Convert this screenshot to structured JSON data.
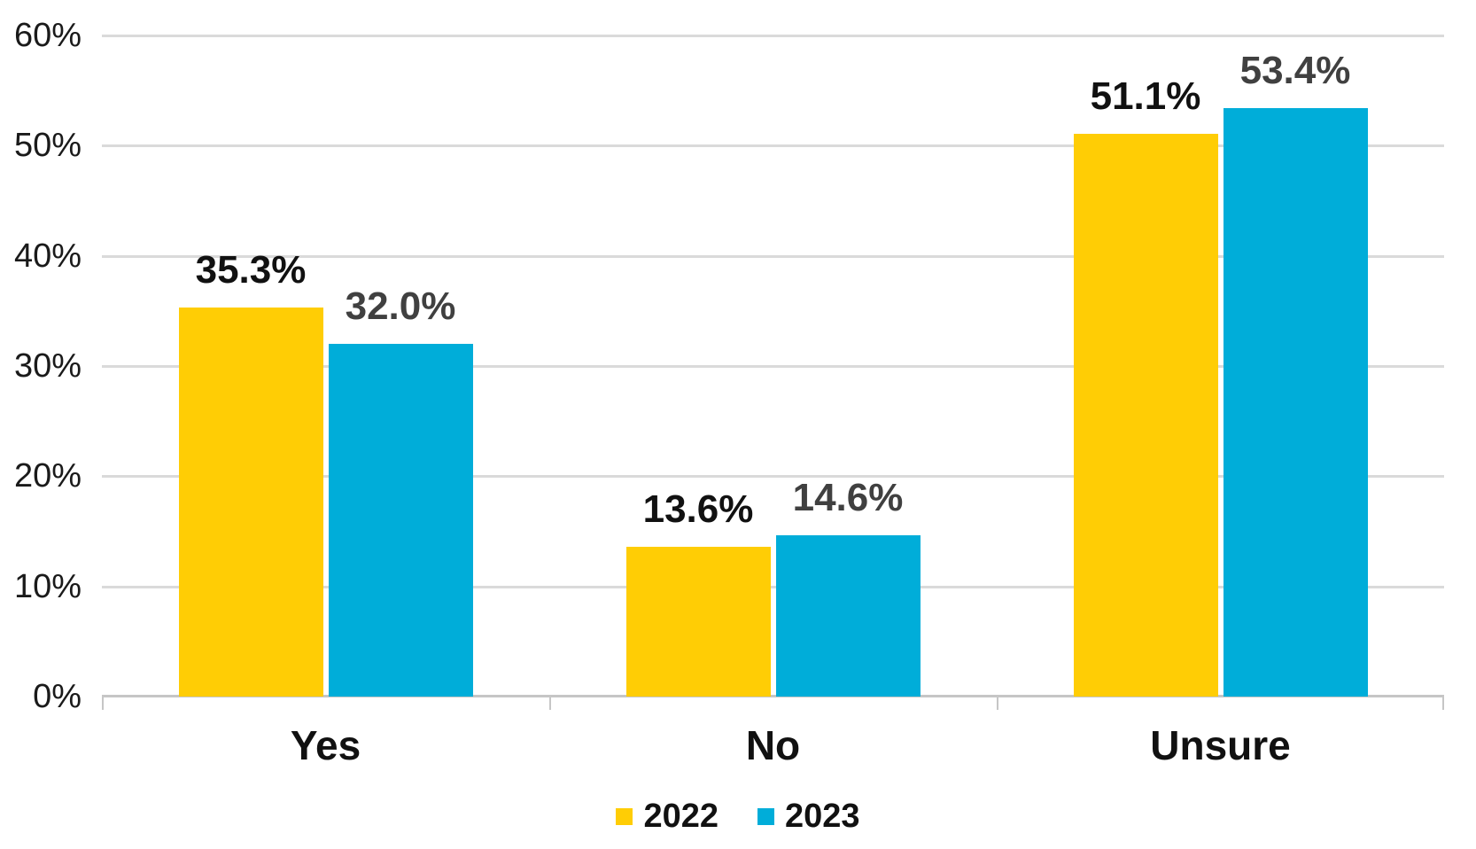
{
  "chart_data": {
    "type": "bar",
    "title": "",
    "xlabel": "",
    "ylabel": "",
    "categories": [
      "Yes",
      "No",
      "Unsure"
    ],
    "series": [
      {
        "name": "2022",
        "color": "#FFCD05",
        "label_color": "#111111",
        "values": [
          35.3,
          13.6,
          51.1
        ],
        "labels": [
          "35.3%",
          "13.6%",
          "51.1%"
        ]
      },
      {
        "name": "2023",
        "color": "#00ADD9",
        "label_color": "#404040",
        "values": [
          32.0,
          14.6,
          53.4
        ],
        "labels": [
          "32.0%",
          "14.6%",
          "53.4%"
        ]
      }
    ],
    "y_axis": {
      "min": 0,
      "max": 60,
      "step": 10,
      "tick_labels": [
        "0%",
        "10%",
        "20%",
        "30%",
        "40%",
        "50%",
        "60%"
      ]
    },
    "grid": true,
    "legend": {
      "position": "bottom",
      "entries": [
        "2022",
        "2023"
      ]
    },
    "colors": {
      "gridline": "#DADADA",
      "axis_line": "#C6C6C6",
      "background": "#FFFFFF"
    }
  }
}
